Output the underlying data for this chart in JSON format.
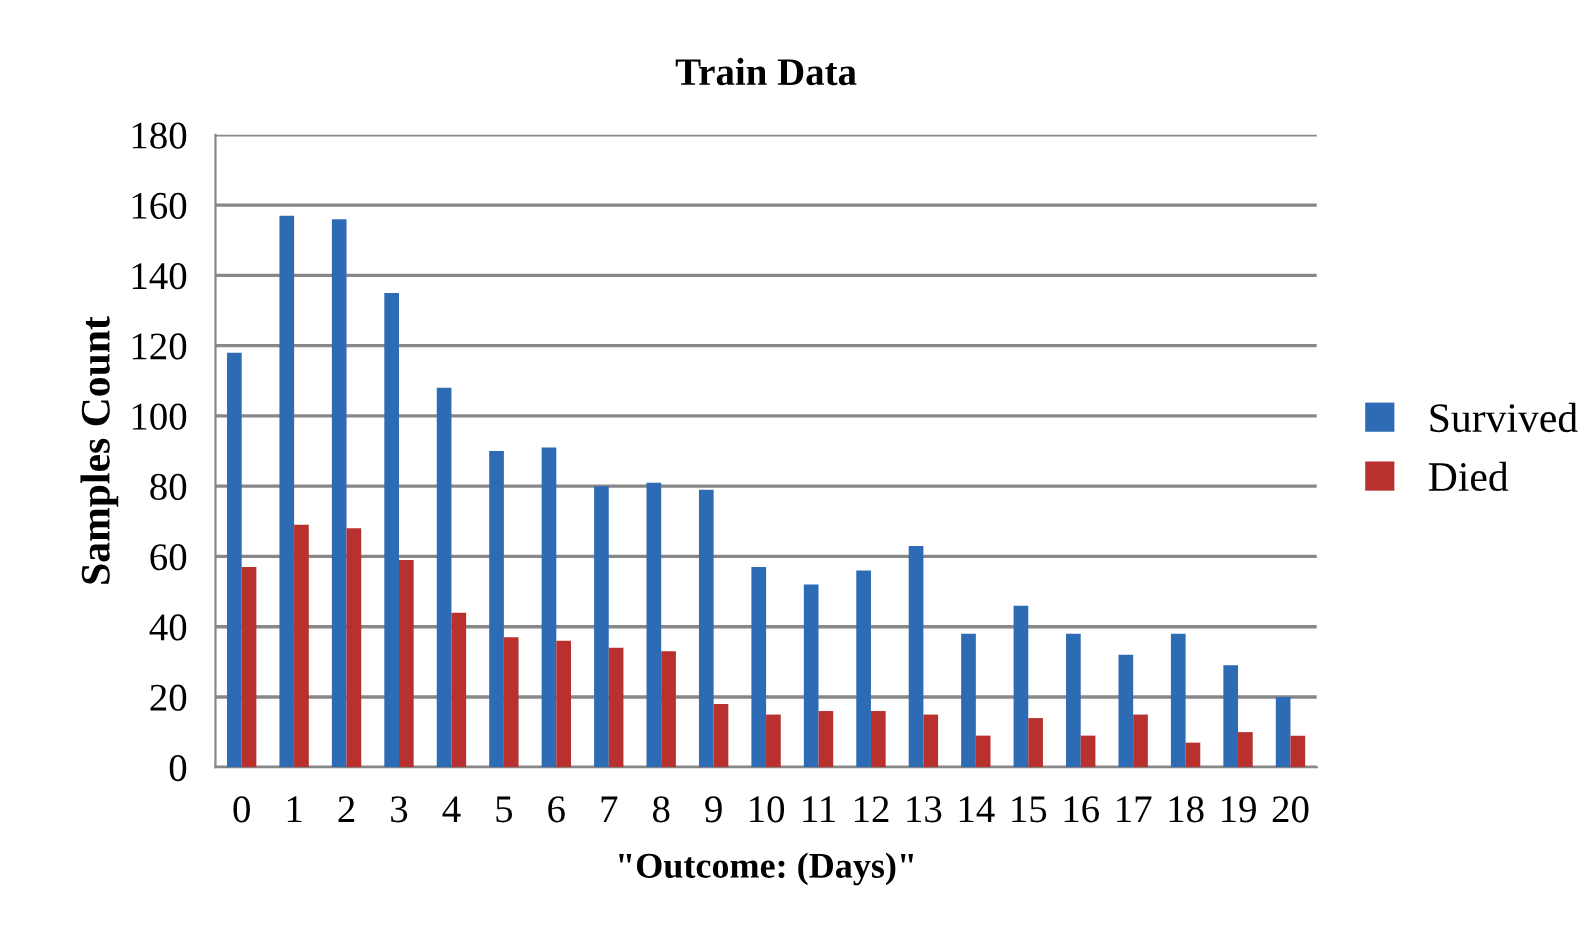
{
  "chart_data": {
    "type": "bar",
    "title": "Train Data",
    "xlabel": "\"Outcome: (Days)\"",
    "ylabel": "Samples Count",
    "categories": [
      "0",
      "1",
      "2",
      "3",
      "4",
      "5",
      "6",
      "7",
      "8",
      "9",
      "10",
      "11",
      "12",
      "13",
      "14",
      "15",
      "16",
      "17",
      "18",
      "19",
      "20"
    ],
    "series": [
      {
        "name": "Survived",
        "color": "#2e6bb5",
        "values": [
          118,
          157,
          156,
          135,
          108,
          90,
          91,
          80,
          81,
          79,
          57,
          52,
          56,
          63,
          38,
          46,
          38,
          32,
          38,
          29,
          20
        ]
      },
      {
        "name": "Died",
        "color": "#b8312f",
        "values": [
          57,
          69,
          68,
          59,
          44,
          37,
          36,
          34,
          33,
          18,
          15,
          16,
          16,
          15,
          9,
          14,
          9,
          15,
          7,
          10,
          9
        ]
      }
    ],
    "ylim": [
      0,
      180
    ],
    "yticks": [
      0,
      20,
      40,
      60,
      80,
      100,
      120,
      140,
      160,
      180
    ],
    "grid": "y",
    "legend": "right"
  }
}
